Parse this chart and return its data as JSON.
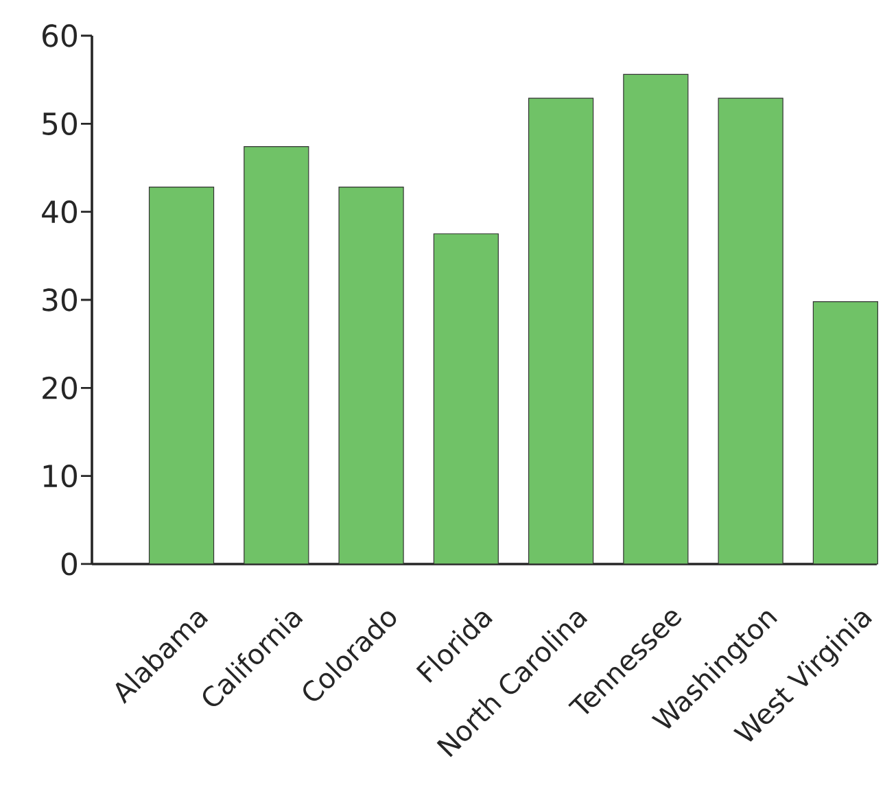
{
  "chart_data": {
    "type": "bar",
    "categories": [
      "Alabama",
      "California",
      "Colorado",
      "Florida",
      "North Carolina",
      "Tennessee",
      "Washington",
      "West Virginia"
    ],
    "values": [
      42.8,
      47.4,
      42.8,
      37.5,
      52.9,
      55.6,
      52.9,
      29.8
    ],
    "color": "#70c267",
    "grid": false,
    "ylim": [
      0,
      60
    ],
    "yticks": [
      0,
      10,
      20,
      30,
      40,
      50,
      60
    ]
  }
}
